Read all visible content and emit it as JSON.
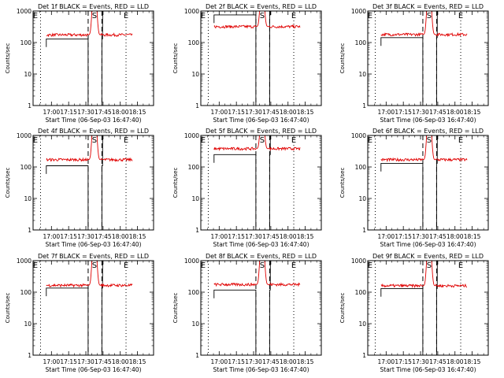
{
  "chart_data": {
    "type": "line",
    "layout": "3x3 grid",
    "time_ticks": [
      "17:00",
      "17:15",
      "17:30",
      "17:45",
      "18:00",
      "18:15"
    ],
    "time_tick_minutes": [
      1020,
      1035,
      1050,
      1065,
      1080,
      1095
    ],
    "xlim_minutes": [
      1004,
      1109
    ],
    "xlabel": "Start Time (06-Sep-03 16:47:40)",
    "ylabel": "Counts/sec",
    "yscale": "log",
    "ylim": [
      1,
      1000
    ],
    "y_ticks": [
      "1",
      "10",
      "100",
      "1000"
    ],
    "y_tick_values": [
      1,
      10,
      100,
      1000
    ],
    "markers": [
      {
        "label": "E",
        "minute": 1006
      },
      {
        "label": "S",
        "minute": 1057.5
      },
      {
        "label": "E",
        "minute": 1085
      }
    ],
    "dotted_lines_minutes": [
      1010.5,
      1085
    ],
    "dashed_lines_minutes": [
      1052,
      1064
    ],
    "series_colors": {
      "Events": "#000000",
      "LLD": "#e00000"
    },
    "panels": [
      {
        "title": "Det 1f BLACK = Events, RED = LLD",
        "events_level": 50,
        "lld_level": 175
      },
      {
        "title": "Det 2f BLACK = Events, RED = LLD",
        "events_level": 290,
        "lld_level": 320
      },
      {
        "title": "Det 3f BLACK = Events, RED = LLD",
        "events_level": 55,
        "lld_level": 180
      },
      {
        "title": "Det 4f BLACK = Events, RED = LLD",
        "events_level": 42,
        "lld_level": 170
      },
      {
        "title": "Det 5f BLACK = Events, RED = LLD",
        "events_level": 95,
        "lld_level": 380
      },
      {
        "title": "Det 6f BLACK = Events, RED = LLD",
        "events_level": 50,
        "lld_level": 170
      },
      {
        "title": "Det 7f BLACK = Events, RED = LLD",
        "events_level": 52,
        "lld_level": 165
      },
      {
        "title": "Det 8f BLACK = Events, RED = LLD",
        "events_level": 45,
        "lld_level": 175
      },
      {
        "title": "Det 9f BLACK = Events, RED = LLD",
        "events_level": 50,
        "lld_level": 160
      }
    ]
  }
}
